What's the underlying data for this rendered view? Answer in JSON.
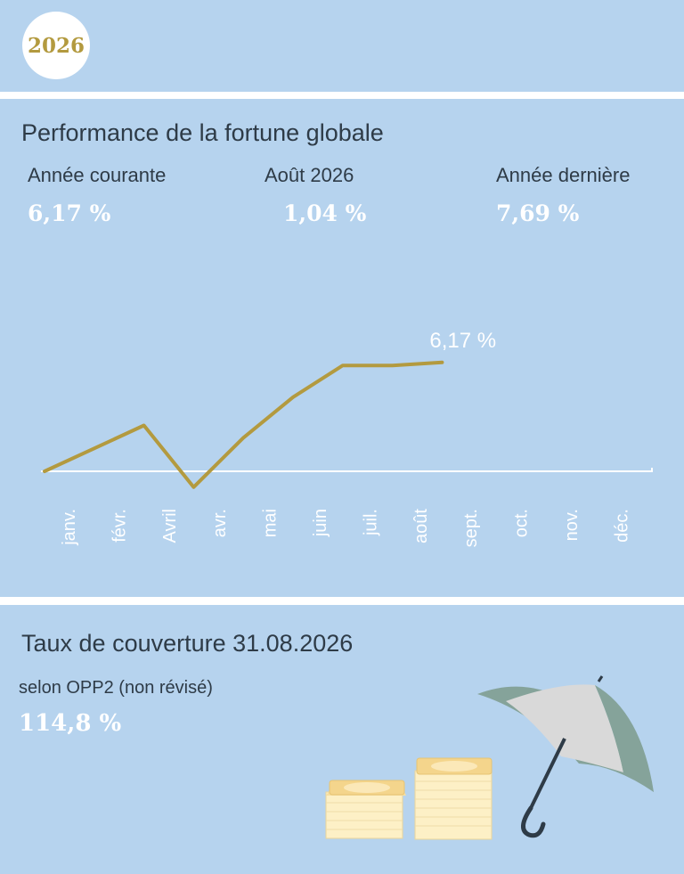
{
  "header": {
    "year": "2026"
  },
  "performance": {
    "title": "Performance de la fortune globale",
    "stats": [
      {
        "label": "Année courante",
        "value": "6,17 %"
      },
      {
        "label": "Août 2026",
        "value": "1,04 %"
      },
      {
        "label": "Année dernière",
        "value": "7,69 %"
      }
    ]
  },
  "chart_data": {
    "type": "line",
    "categories": [
      "janv.",
      "févr.",
      "Avril",
      "avr.",
      "mai",
      "juin",
      "juil.",
      "août",
      "sept.",
      "oct.",
      "nov.",
      "déc."
    ],
    "series": [
      {
        "values": [
          0.0,
          1.3,
          2.6,
          -0.9,
          1.9,
          4.2,
          6.0,
          6.0,
          6.17,
          null,
          null,
          null
        ]
      }
    ],
    "x_points": [
      0,
      1,
      2,
      3,
      4,
      5,
      6,
      7,
      8
    ],
    "end_label": "6,17 %",
    "ylim": [
      -1.5,
      7.0
    ],
    "grid": false,
    "line_color": "#b39a3f",
    "axis_color": "#ffffff"
  },
  "coverage": {
    "title": "Taux de couverture 31.08.2026",
    "subtitle": "selon OPP2 (non révisé)",
    "value": "114,8 %"
  },
  "icons": [
    "umbrella-icon",
    "coin-stack-icon"
  ],
  "colors": {
    "background": "#b6d3ee",
    "gold": "#b39a3f",
    "text": "#2e3b47",
    "umbrella": "#85a39a",
    "umbrella_light": "#d9d9d9"
  }
}
